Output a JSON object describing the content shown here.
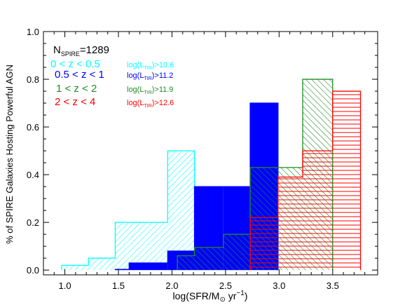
{
  "chart_data": {
    "type": "bar",
    "xlabel_main": "log(SFR/M",
    "xlabel_sun": "⊙",
    "xlabel_tail": " yr",
    "xlabel_exp": "−1",
    "xlabel_close": ")",
    "ylabel": "% of SPIRE Galaxies Hosting Powerful AGN",
    "xlim": [
      0.8,
      3.92
    ],
    "ylim": [
      -0.02,
      1.0
    ],
    "xticks": [
      "1.0",
      "1.5",
      "2.0",
      "2.5",
      "3.0",
      "3.5"
    ],
    "xtick_values": [
      1.0,
      1.5,
      2.0,
      2.5,
      3.0,
      3.5
    ],
    "yticks": [
      "0.0",
      "0.2",
      "0.4",
      "0.6",
      "0.8",
      "1.0"
    ],
    "ytick_values": [
      0.0,
      0.2,
      0.4,
      0.6,
      0.8,
      1.0
    ],
    "n_label_main": "N",
    "n_label_sub": "SPIRE",
    "n_label_value": "=1289",
    "series": [
      {
        "name": "0 < z < 0.5",
        "lum_label_pre": "log(L",
        "lum_label_sub": "TIR",
        "lum_label_post": ")>10.6",
        "color": "#00ffff",
        "fill": "hatch-diag-right",
        "bins": [
          {
            "x0": 0.97,
            "x1": 1.22,
            "y": 0.02
          },
          {
            "x0": 1.22,
            "x1": 1.47,
            "y": 0.05
          },
          {
            "x0": 1.47,
            "x1": 1.96,
            "y": 0.2
          },
          {
            "x0": 1.96,
            "x1": 2.21,
            "y": 0.5
          }
        ]
      },
      {
        "name": "0.5 < z < 1",
        "lum_label_pre": "log(L",
        "lum_label_sub": "TIR",
        "lum_label_post": ")>11.2",
        "color": "#0000ff",
        "fill": "solid",
        "bins": [
          {
            "x0": 1.47,
            "x1": 1.6,
            "y": 0.003
          },
          {
            "x0": 1.6,
            "x1": 1.96,
            "y": 0.03
          },
          {
            "x0": 1.96,
            "x1": 2.21,
            "y": 0.08
          },
          {
            "x0": 2.21,
            "x1": 2.48,
            "y": 0.35
          },
          {
            "x0": 2.48,
            "x1": 2.73,
            "y": 0.35
          },
          {
            "x0": 2.73,
            "x1": 2.99,
            "y": 0.7
          }
        ]
      },
      {
        "name": "1 < z < 2",
        "lum_label_pre": "log(L",
        "lum_label_sub": "TIR",
        "lum_label_post": ")>11.9",
        "color": "#228b22",
        "fill": "hatch-diag-left",
        "bins": [
          {
            "x0": 2.05,
            "x1": 2.21,
            "y": 0.06
          },
          {
            "x0": 2.21,
            "x1": 2.36,
            "y": 0.095
          },
          {
            "x0": 2.36,
            "x1": 2.48,
            "y": 0.095
          },
          {
            "x0": 2.48,
            "x1": 2.73,
            "y": 0.15
          },
          {
            "x0": 2.73,
            "x1": 2.99,
            "y": 0.43
          },
          {
            "x0": 2.99,
            "x1": 3.22,
            "y": 0.43
          },
          {
            "x0": 3.22,
            "x1": 3.5,
            "y": 0.8
          }
        ]
      },
      {
        "name": "2 < z < 4",
        "lum_label_pre": "log(L",
        "lum_label_sub": "TIR",
        "lum_label_post": ")>12.6",
        "color": "#ff0000",
        "fill": "hatch-horizontal",
        "bins": [
          {
            "x0": 2.73,
            "x1": 2.99,
            "y": 0.22
          },
          {
            "x0": 2.99,
            "x1": 3.22,
            "y": 0.39
          },
          {
            "x0": 3.22,
            "x1": 3.5,
            "y": 0.5
          },
          {
            "x0": 3.5,
            "x1": 3.76,
            "y": 0.75
          }
        ]
      }
    ]
  }
}
